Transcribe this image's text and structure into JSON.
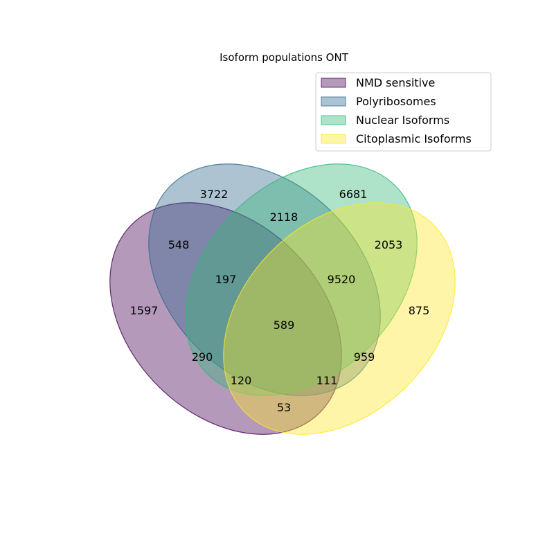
{
  "title": "Isoform populations ONT",
  "sets": [
    {
      "key": "nmd",
      "label": "NMD sensitive",
      "fill": "#440154",
      "stroke": "#440154"
    },
    {
      "key": "poly",
      "label": "Polyribosomes",
      "fill": "#31688e",
      "stroke": "#31688e"
    },
    {
      "key": "nuc",
      "label": "Nuclear Isoforms",
      "fill": "#35b779",
      "stroke": "#35b779"
    },
    {
      "key": "cyto",
      "label": "Citoplasmic Isoforms",
      "fill": "#fde725",
      "stroke": "#fde725"
    }
  ],
  "regions": [
    {
      "sets": [
        "poly"
      ],
      "value": "3722"
    },
    {
      "sets": [
        "nuc"
      ],
      "value": "6681"
    },
    {
      "sets": [
        "poly",
        "nuc"
      ],
      "value": "2118"
    },
    {
      "sets": [
        "nmd",
        "poly"
      ],
      "value": "548"
    },
    {
      "sets": [
        "nuc",
        "cyto"
      ],
      "value": "2053"
    },
    {
      "sets": [
        "nmd",
        "poly",
        "nuc"
      ],
      "value": "197"
    },
    {
      "sets": [
        "poly",
        "nuc",
        "cyto"
      ],
      "value": "9520"
    },
    {
      "sets": [
        "nmd"
      ],
      "value": "1597"
    },
    {
      "sets": [
        "cyto"
      ],
      "value": "875"
    },
    {
      "sets": [
        "nmd",
        "poly",
        "nuc",
        "cyto"
      ],
      "value": "589"
    },
    {
      "sets": [
        "nmd",
        "nuc"
      ],
      "value": "290"
    },
    {
      "sets": [
        "poly",
        "cyto"
      ],
      "value": "959"
    },
    {
      "sets": [
        "nmd",
        "nuc",
        "cyto"
      ],
      "value": "120"
    },
    {
      "sets": [
        "nmd",
        "poly",
        "cyto"
      ],
      "value": "111"
    },
    {
      "sets": [
        "nmd",
        "cyto"
      ],
      "value": "53"
    }
  ]
}
